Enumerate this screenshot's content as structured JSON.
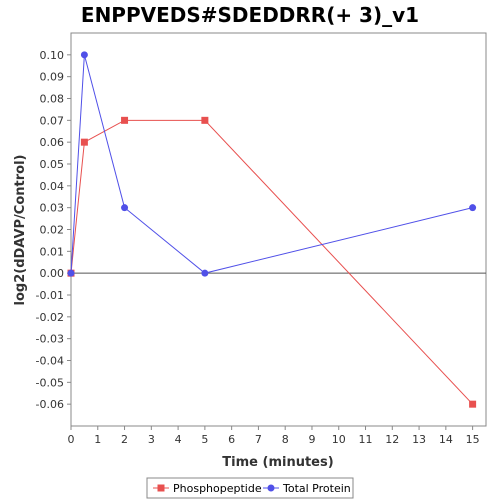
{
  "chart_data": {
    "type": "line",
    "title": "ENPPVEDS#SDEDDRR(+ 3)_v1",
    "xlabel": "Time (minutes)",
    "ylabel": "log2(dDAVP/Control)",
    "xlim": [
      0,
      15.5
    ],
    "ylim": [
      -0.07,
      0.11
    ],
    "xticks": [
      "0",
      "1",
      "2",
      "3",
      "4",
      "5",
      "6",
      "7",
      "8",
      "9",
      "10",
      "11",
      "12",
      "13",
      "14",
      "15"
    ],
    "yticks": [
      "0.10",
      "0.09",
      "0.08",
      "0.07",
      "0.06",
      "0.05",
      "0.04",
      "0.03",
      "0.02",
      "0.01",
      "0.00",
      "-0.01",
      "-0.02",
      "-0.03",
      "-0.04",
      "-0.05",
      "-0.06"
    ],
    "grid": false,
    "legend": "bottom",
    "series": [
      {
        "name": "Phosphopeptide",
        "color": "#e8504f",
        "marker": "square",
        "x": [
          0,
          0.5,
          2,
          5,
          15
        ],
        "y": [
          0.0,
          0.06,
          0.07,
          0.07,
          -0.06
        ]
      },
      {
        "name": "Total Protein",
        "color": "#5050e8",
        "marker": "circle",
        "x": [
          0,
          0.5,
          2,
          5,
          15
        ],
        "y": [
          0.0,
          0.1,
          0.03,
          0.0,
          0.03
        ]
      }
    ]
  }
}
